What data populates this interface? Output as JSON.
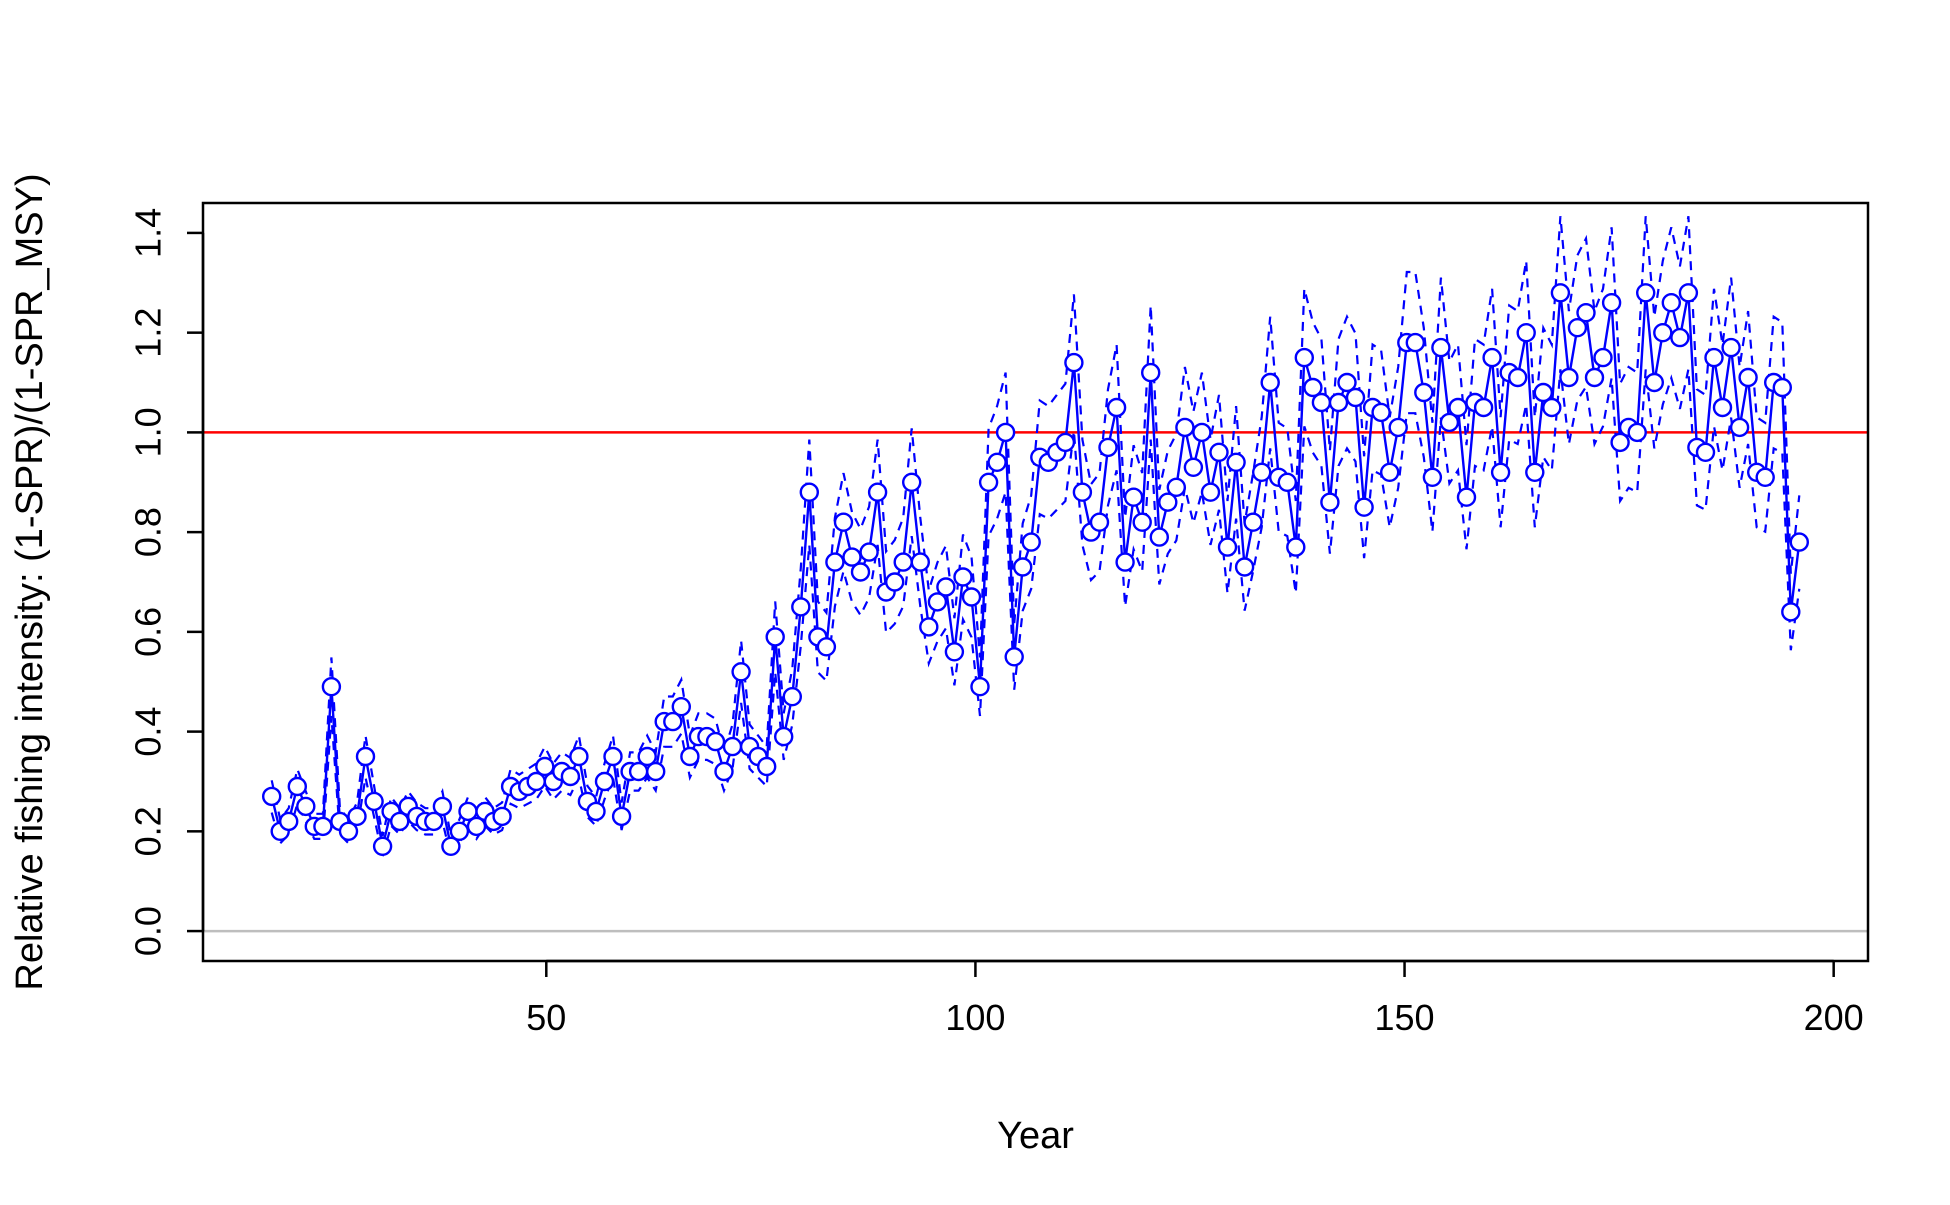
{
  "chart_data": {
    "type": "line",
    "title": "",
    "xlabel": "Year",
    "ylabel": "Relative fishing intensity: (1-SPR)/(1-SPR_MSY)",
    "xlim": [
      10,
      204
    ],
    "ylim": [
      -0.06,
      1.46
    ],
    "x_ticks": [
      50,
      100,
      150,
      200
    ],
    "y_ticks": [
      0.0,
      0.2,
      0.4,
      0.6,
      0.8,
      1.0,
      1.2,
      1.4
    ],
    "x_tick_labels": [
      "50",
      "100",
      "150",
      "200"
    ],
    "y_tick_labels": [
      "0.0",
      "0.2",
      "0.4",
      "0.6",
      "0.8",
      "1.0",
      "1.2",
      "1.4"
    ],
    "reference_lines": [
      {
        "y": 1.0,
        "color": "#ff0000"
      },
      {
        "y": 0.0,
        "color": "#bebebe"
      }
    ],
    "interval_offset_fraction": 0.12,
    "colors": {
      "series": "#0000ff"
    },
    "series": [
      {
        "type": "line-with-points",
        "x_start": 18,
        "x_end": 196,
        "y": [
          0.27,
          0.2,
          0.22,
          0.29,
          0.25,
          0.21,
          0.21,
          0.49,
          0.22,
          0.2,
          0.23,
          0.35,
          0.26,
          0.17,
          0.24,
          0.22,
          0.25,
          0.23,
          0.22,
          0.22,
          0.25,
          0.17,
          0.2,
          0.24,
          0.21,
          0.24,
          0.22,
          0.23,
          0.29,
          0.28,
          0.29,
          0.3,
          0.33,
          0.3,
          0.32,
          0.31,
          0.35,
          0.26,
          0.24,
          0.3,
          0.35,
          0.23,
          0.32,
          0.32,
          0.35,
          0.32,
          0.42,
          0.42,
          0.45,
          0.35,
          0.39,
          0.39,
          0.38,
          0.32,
          0.37,
          0.52,
          0.37,
          0.35,
          0.33,
          0.59,
          0.39,
          0.47,
          0.65,
          0.88,
          0.59,
          0.57,
          0.74,
          0.82,
          0.75,
          0.72,
          0.76,
          0.88,
          0.68,
          0.7,
          0.74,
          0.9,
          0.74,
          0.61,
          0.66,
          0.69,
          0.56,
          0.71,
          0.67,
          0.49,
          0.9,
          0.94,
          1.0,
          0.55,
          0.73,
          0.78,
          0.95,
          0.94,
          0.96,
          0.98,
          1.14,
          0.88,
          0.8,
          0.82,
          0.97,
          1.05,
          0.74,
          0.87,
          0.82,
          1.12,
          0.79,
          0.86,
          0.89,
          1.01,
          0.93,
          1.0,
          0.88,
          0.96,
          0.77,
          0.94,
          0.73,
          0.82,
          0.92,
          1.1,
          0.91,
          0.9,
          0.77,
          1.15,
          1.09,
          1.06,
          0.86,
          1.06,
          1.1,
          1.07,
          0.85,
          1.05,
          1.04,
          0.92,
          1.01,
          1.18,
          1.18,
          1.08,
          0.91,
          1.17,
          1.02,
          1.05,
          0.87,
          1.06,
          1.05,
          1.15,
          0.92,
          1.12,
          1.11,
          1.2,
          0.92,
          1.08,
          1.05,
          1.28,
          1.11,
          1.21,
          1.24,
          1.11,
          1.15,
          1.26,
          0.98,
          1.01,
          1.0,
          1.28,
          1.1,
          1.2,
          1.26,
          1.19,
          1.28,
          0.97,
          0.96,
          1.15,
          1.05,
          1.17,
          1.01,
          1.11,
          0.92,
          0.91,
          1.1,
          1.09,
          0.64,
          0.78
        ]
      }
    ]
  }
}
